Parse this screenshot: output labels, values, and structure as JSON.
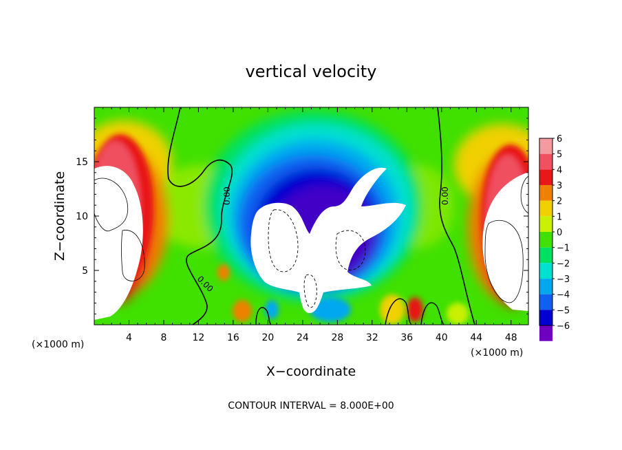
{
  "chart_data": {
    "type": "heatmap",
    "title": "vertical velocity",
    "xlabel": "X−coordinate",
    "ylabel": "Z−coordinate",
    "x_unit": "(×1000 m)",
    "y_unit": "(×1000 m)",
    "xlim": [
      0,
      50
    ],
    "ylim": [
      0,
      20
    ],
    "x_ticks": [
      4,
      8,
      12,
      16,
      20,
      24,
      28,
      32,
      36,
      40,
      44,
      48
    ],
    "y_ticks": [
      5,
      10,
      15
    ],
    "colorbar": {
      "levels": [
        6,
        5,
        4,
        3,
        2,
        1,
        0,
        -1,
        -2,
        -3,
        -4,
        -5,
        -6
      ],
      "tick_labels": [
        "6",
        "5",
        "4",
        "3",
        "2",
        "1",
        "0",
        "−1",
        "−2",
        "−3",
        "−4",
        "−5",
        "−6"
      ],
      "colors": [
        "#f39ba0",
        "#f05060",
        "#e81818",
        "#f08000",
        "#f0d000",
        "#c8f000",
        "#40e000",
        "#00e060",
        "#00e0d0",
        "#00a8f0",
        "#1060f0",
        "#0000d0",
        "#7000c0"
      ]
    },
    "contour_labels": [
      "0.00",
      "0.00",
      "0.00"
    ],
    "contour_interval_text": "CONTOUR INTERVAL = 8.000E+00"
  }
}
